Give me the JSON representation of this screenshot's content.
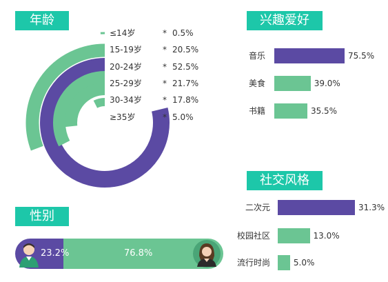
{
  "age": {
    "title": "年龄",
    "chart_data": {
      "type": "radial-bar",
      "categories": [
        "≤14岁",
        "15-19岁",
        "20-24岁",
        "25-29岁",
        "30-34岁",
        "≥35岁"
      ],
      "values": [
        0.5,
        20.5,
        52.5,
        21.7,
        17.8,
        5.0
      ],
      "value_labels": [
        "0.5%",
        "20.5%",
        "52.5%",
        "21.7%",
        "17.8%",
        "5.0%"
      ],
      "colors": [
        "#6bc593",
        "#6bc593",
        "#5b4aa3",
        "#6bc593",
        "#6bc593",
        "#6bc593"
      ],
      "separator": "*"
    }
  },
  "interests": {
    "title": "兴趣爱好",
    "chart_data": {
      "type": "bar",
      "categories": [
        "音乐",
        "美食",
        "书籍"
      ],
      "values": [
        75.5,
        39.0,
        35.5
      ],
      "value_labels": [
        "75.5%",
        "39.0%",
        "35.5%"
      ],
      "colors": [
        "#5b4aa3",
        "#6bc593",
        "#6bc593"
      ]
    }
  },
  "social": {
    "title": "社交风格",
    "chart_data": {
      "type": "bar",
      "categories": [
        "二次元",
        "校园社区",
        "流行时尚"
      ],
      "values": [
        31.3,
        13.0,
        5.0
      ],
      "value_labels": [
        "31.3%",
        "13.0%",
        "5.0%"
      ],
      "colors": [
        "#5b4aa3",
        "#6bc593",
        "#6bc593"
      ]
    }
  },
  "gender": {
    "title": "性别",
    "chart_data": {
      "type": "bar",
      "categories": [
        "男",
        "女"
      ],
      "values": [
        23.2,
        76.8
      ],
      "value_labels": [
        "23.2%",
        "76.8%"
      ],
      "colors": [
        "#5b4aa3",
        "#6bc593"
      ]
    }
  },
  "icons": [
    "male-avatar-icon",
    "female-avatar-icon"
  ]
}
